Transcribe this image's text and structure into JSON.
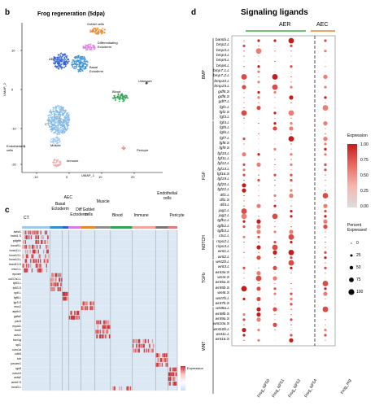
{
  "panel_b": {
    "letter": "b",
    "title": "Frog regeneration (5dpa)",
    "x_axis_label": "UMAP_1",
    "y_axis_label": "UMAP_2",
    "x_ticks": [
      "-10",
      "0",
      "10",
      "20"
    ],
    "y_ticks": [
      "10",
      "0",
      "-10",
      "-20"
    ],
    "cluster_labels": [
      "Goblet cells",
      "Differentiating\nEctoderm",
      "AEC",
      "Basal\nEctoderm",
      "Unknown",
      "Blood",
      "CT",
      "Muscle",
      "Endothelial\ncells",
      "Pericyte",
      "Immune"
    ],
    "cluster_colors": [
      "#e8862a",
      "#d77be0",
      "#2e5fd6",
      "#2e8fd6",
      "#444444",
      "#31a354",
      "#7fb6e6",
      "#9ec9ee",
      "#777777",
      "#e07a7a",
      "#f4a3a3"
    ]
  },
  "panel_c": {
    "letter": "c",
    "column_groups": [
      "CT",
      "Basal\nEctoderm",
      "AEC",
      "Diff\nEctoderm",
      "Goblet\ncells",
      "Muscle",
      "Blood",
      "Immune",
      "Endothelial\ncells",
      "Pericyte"
    ],
    "group_colors": [
      "#9ec9ee",
      "#2e8fd6",
      "#2e5fd6",
      "#d77be0",
      "#e8862a",
      "#8e8e8e",
      "#31a354",
      "#f4a3a3",
      "#777777",
      "#e07a7a"
    ],
    "genes": [
      "twist1",
      "twist1.S",
      "pdgfrb",
      "hoxa9.L",
      "hoxa11.L",
      "hoxd13.L",
      "hoxa13.L",
      "hoxd13.S",
      "msx1.L",
      "epcam",
      "col17a1.L",
      "tp63.L",
      "tp63.S",
      "sp6.L",
      "fgf8.L",
      "lgr5.S",
      "muc2",
      "atp6v1",
      "gata2",
      "pax3",
      "myod1",
      "tnnt2",
      "actc1",
      "fcer1g",
      "spi1",
      "coro1a",
      "cdh5",
      "kdr",
      "pecam1",
      "rgs5",
      "notch3",
      "acta2",
      "acta2.S",
      "foxd3.L"
    ],
    "legend_title": "Expression"
  },
  "panel_d": {
    "letter": "d",
    "title": "Signaling ligands",
    "group_aer": "AER",
    "group_aec": "AEC",
    "aer_color": "#3fae49",
    "aec_color": "#e8862a",
    "columns": [
      "Frog_NF50",
      "Frog_NF51",
      "Frog_NF52",
      "Frog_NF54",
      "Frog_reg"
    ],
    "families": [
      {
        "name": "BMP",
        "count": 16
      },
      {
        "name": "FGF",
        "count": 23
      },
      {
        "name": "NOTCH",
        "count": 4
      },
      {
        "name": "TGFb",
        "count": 9
      },
      {
        "name": "WNT",
        "count": 17
      }
    ],
    "genes": [
      "bambi.L",
      "bmp2.L",
      "bmp3.L",
      "bmp4.L",
      "bmp5.L",
      "bmp6.L",
      "bmp7.1.L",
      "bmp7.2.L",
      "bmp10.L",
      "bmp15.L",
      "gdf5.S",
      "gdf6.S",
      "gdf7.L",
      "fgf1.L",
      "fgf2.S",
      "fgf3.L",
      "fgf4.L",
      "fgf5.L",
      "fgf6.L",
      "fgf7.L",
      "fgf8.S",
      "fgf9.S",
      "fgf10.L",
      "fgf11.L",
      "fgf12.L",
      "fgf13.L",
      "fgf16.S",
      "fgf19.L",
      "fgf20.L",
      "fgf22.L",
      "dll1.L",
      "dll1.S",
      "dll4.L",
      "jag1.L",
      "jag2.L",
      "tgfb1.L",
      "tgfb2.L",
      "tgfb3.L",
      "ctx1.L",
      "rspo2.L",
      "rspo3.L",
      "wnt1.L",
      "wnt2.L",
      "wnt2b.L",
      "wnt3.L",
      "wnt3a.S",
      "wnt4.S",
      "wnt5a.S",
      "wnt5b.S",
      "wnt6.S",
      "wnt7b.L",
      "wnt7b.S",
      "wnt8a.L",
      "wnt8b.S",
      "wnt9a.S",
      "wnt10a.S",
      "wnt10b.L",
      "wnt11.L",
      "wnt16.S"
    ],
    "expression_legend_title": "Expression",
    "expression_ticks": [
      "1.00",
      "0.75",
      "0.50",
      "0.25",
      "0.00"
    ],
    "percent_legend_title": "Percent\nExpressed",
    "percent_ticks": [
      "0",
      "25",
      "50",
      "75",
      "100"
    ]
  }
}
